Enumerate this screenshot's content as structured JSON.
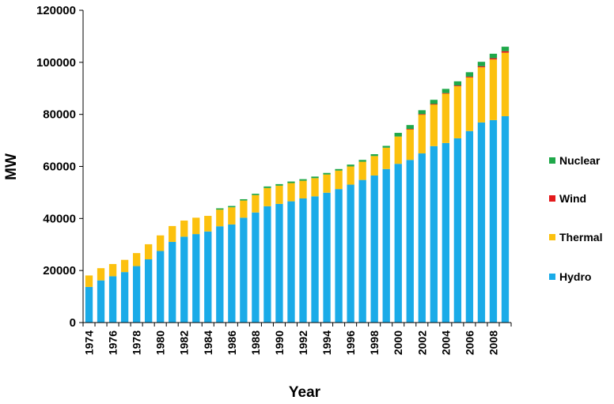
{
  "chart_data": {
    "type": "bar",
    "stacked": true,
    "title": "",
    "xlabel": "Year",
    "ylabel": "MW",
    "ylim": [
      0,
      120000
    ],
    "yticks": [
      0,
      20000,
      40000,
      60000,
      80000,
      100000,
      120000
    ],
    "ytick_labels": [
      "0",
      "20000",
      "40000",
      "60000",
      "80000",
      "100000",
      "120000"
    ],
    "xtick_labels": [
      "1974",
      "1976",
      "1978",
      "1980",
      "1982",
      "1984",
      "1986",
      "1988",
      "1990",
      "1992",
      "1994",
      "1996",
      "1998",
      "2000",
      "2002",
      "2004",
      "2006",
      "2008"
    ],
    "categories": [
      "1974",
      "1975",
      "1976",
      "1977",
      "1978",
      "1979",
      "1980",
      "1981",
      "1982",
      "1983",
      "1984",
      "1985",
      "1986",
      "1987",
      "1988",
      "1989",
      "1990",
      "1991",
      "1992",
      "1993",
      "1994",
      "1995",
      "1996",
      "1997",
      "1998",
      "1999",
      "2000",
      "2001",
      "2002",
      "2003",
      "2004",
      "2005",
      "2006",
      "2007",
      "2008",
      "2009"
    ],
    "grid": false,
    "legend_position": "right",
    "series": [
      {
        "name": "Hydro",
        "color": "#1aabe8",
        "values": [
          13700,
          16200,
          17800,
          19400,
          21700,
          24300,
          27500,
          31000,
          33000,
          34000,
          35000,
          37000,
          37700,
          40300,
          42300,
          44700,
          45600,
          46600,
          47700,
          48500,
          49900,
          51300,
          53000,
          54800,
          56500,
          59000,
          61000,
          62500,
          65000,
          67800,
          69000,
          70800,
          73600,
          76900,
          77800,
          79300
        ]
      },
      {
        "name": "Thermal",
        "color": "#fcc10e",
        "values": [
          4400,
          4700,
          4700,
          4700,
          5000,
          5800,
          6000,
          6100,
          6200,
          6300,
          6000,
          6400,
          6600,
          6600,
          6700,
          7000,
          7000,
          7000,
          6800,
          7000,
          7000,
          7100,
          7000,
          7000,
          7500,
          8200,
          10500,
          11800,
          15000,
          16000,
          19000,
          20000,
          20600,
          21200,
          23300,
          24400
        ]
      },
      {
        "name": "Wind",
        "color": "#e31a1c",
        "values": [
          0,
          0,
          0,
          0,
          0,
          0,
          0,
          0,
          0,
          0,
          0,
          0,
          0,
          0,
          0,
          0,
          0,
          0,
          0,
          0,
          0,
          0,
          0,
          0,
          0,
          0,
          0,
          100,
          100,
          200,
          200,
          300,
          300,
          400,
          500,
          600
        ]
      },
      {
        "name": "Nuclear",
        "color": "#1fa84a",
        "values": [
          0,
          0,
          0,
          0,
          0,
          0,
          0,
          0,
          0,
          0,
          0,
          500,
          500,
          500,
          500,
          600,
          600,
          600,
          600,
          600,
          600,
          600,
          700,
          700,
          700,
          700,
          1400,
          1500,
          1500,
          1600,
          1600,
          1600,
          1700,
          1700,
          1700,
          1700
        ]
      }
    ]
  }
}
